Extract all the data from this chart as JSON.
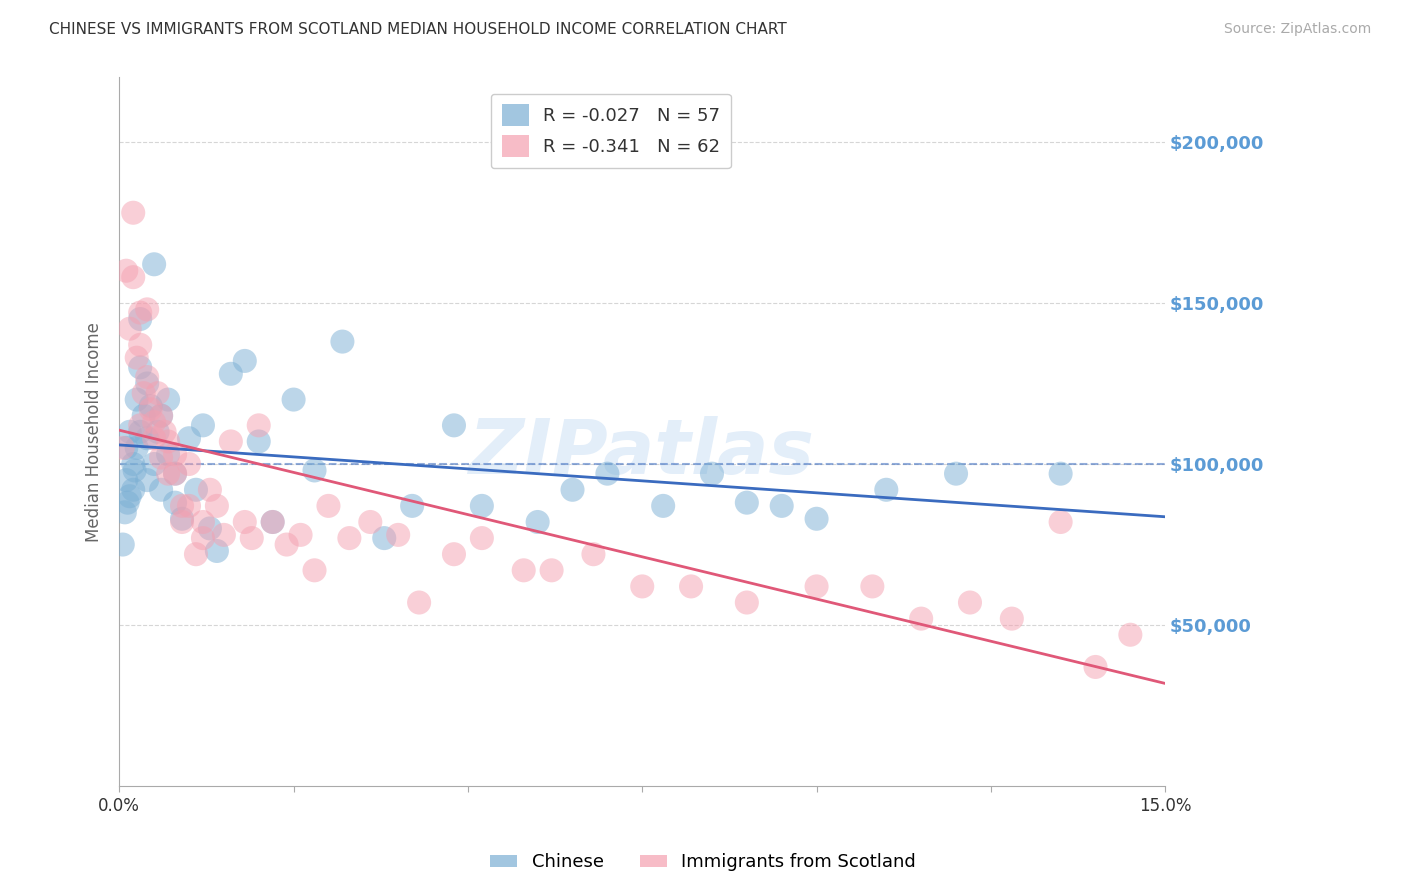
{
  "title": "CHINESE VS IMMIGRANTS FROM SCOTLAND MEDIAN HOUSEHOLD INCOME CORRELATION CHART",
  "source": "Source: ZipAtlas.com",
  "ylabel": "Median Household Income",
  "watermark": "ZIPatlas",
  "legend_upper": [
    {
      "R": "-0.027",
      "N": "57",
      "color": "#7bafd4"
    },
    {
      "R": "-0.341",
      "N": "62",
      "color": "#f4a0b0"
    }
  ],
  "legend_bottom": [
    {
      "label": "Chinese",
      "color": "#7bafd4"
    },
    {
      "label": "Immigrants from Scotland",
      "color": "#f4a0b0"
    }
  ],
  "yticks": [
    0,
    50000,
    100000,
    150000,
    200000
  ],
  "ytick_labels": [
    "",
    "$50,000",
    "$100,000",
    "$150,000",
    "$200,000"
  ],
  "ylim": [
    0,
    220000
  ],
  "xlim": [
    0.0,
    0.15
  ],
  "background_color": "#ffffff",
  "grid_color": "#cccccc",
  "blue_color": "#7bafd4",
  "pink_color": "#f4a0b0",
  "blue_line_color": "#3a6bbf",
  "pink_line_color": "#e05878",
  "right_axis_color": "#5b9bd5",
  "chinese_x": [
    0.0005,
    0.0008,
    0.001,
    0.001,
    0.0012,
    0.0015,
    0.0015,
    0.002,
    0.002,
    0.0022,
    0.0025,
    0.0025,
    0.003,
    0.003,
    0.003,
    0.0035,
    0.004,
    0.004,
    0.004,
    0.0045,
    0.005,
    0.005,
    0.0055,
    0.006,
    0.006,
    0.007,
    0.007,
    0.008,
    0.008,
    0.009,
    0.01,
    0.011,
    0.012,
    0.013,
    0.014,
    0.016,
    0.018,
    0.02,
    0.022,
    0.025,
    0.028,
    0.032,
    0.038,
    0.042,
    0.048,
    0.052,
    0.06,
    0.065,
    0.07,
    0.078,
    0.085,
    0.09,
    0.095,
    0.1,
    0.11,
    0.12,
    0.135
  ],
  "chinese_y": [
    75000,
    85000,
    95000,
    105000,
    88000,
    90000,
    110000,
    100000,
    92000,
    98000,
    105000,
    120000,
    130000,
    145000,
    110000,
    115000,
    125000,
    108000,
    95000,
    118000,
    100000,
    162000,
    110000,
    115000,
    92000,
    120000,
    103000,
    97000,
    88000,
    83000,
    108000,
    92000,
    112000,
    80000,
    73000,
    128000,
    132000,
    107000,
    82000,
    120000,
    98000,
    138000,
    77000,
    87000,
    112000,
    87000,
    82000,
    92000,
    97000,
    87000,
    97000,
    88000,
    87000,
    83000,
    92000,
    97000,
    97000
  ],
  "scotland_x": [
    0.0005,
    0.001,
    0.0015,
    0.002,
    0.002,
    0.0025,
    0.003,
    0.003,
    0.003,
    0.0035,
    0.004,
    0.004,
    0.0045,
    0.005,
    0.005,
    0.0055,
    0.006,
    0.006,
    0.0065,
    0.007,
    0.007,
    0.008,
    0.008,
    0.009,
    0.009,
    0.01,
    0.01,
    0.011,
    0.012,
    0.012,
    0.013,
    0.014,
    0.015,
    0.016,
    0.018,
    0.019,
    0.02,
    0.022,
    0.024,
    0.026,
    0.028,
    0.03,
    0.033,
    0.036,
    0.04,
    0.043,
    0.048,
    0.052,
    0.058,
    0.062,
    0.068,
    0.075,
    0.082,
    0.09,
    0.1,
    0.108,
    0.115,
    0.122,
    0.128,
    0.135,
    0.14,
    0.145
  ],
  "scotland_y": [
    105000,
    160000,
    142000,
    178000,
    158000,
    133000,
    147000,
    137000,
    112000,
    122000,
    148000,
    127000,
    117000,
    108000,
    113000,
    122000,
    102000,
    115000,
    110000,
    97000,
    107000,
    103000,
    97000,
    87000,
    82000,
    100000,
    87000,
    72000,
    82000,
    77000,
    92000,
    87000,
    78000,
    107000,
    82000,
    77000,
    112000,
    82000,
    75000,
    78000,
    67000,
    87000,
    77000,
    82000,
    78000,
    57000,
    72000,
    77000,
    67000,
    67000,
    72000,
    62000,
    62000,
    57000,
    62000,
    62000,
    52000,
    57000,
    52000,
    82000,
    37000,
    47000
  ]
}
